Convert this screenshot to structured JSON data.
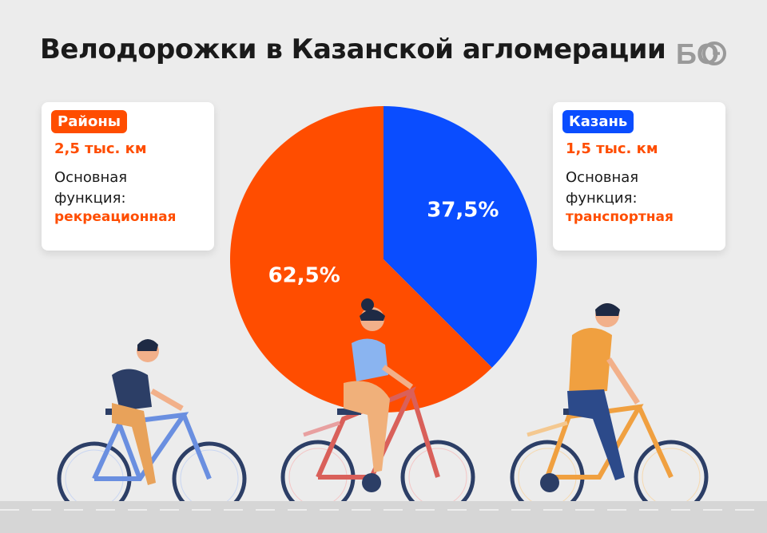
{
  "title": "Велодорожки в Казанской агломерации",
  "logo_text": "БО",
  "colors": {
    "districts": "#ff4d00",
    "kazan": "#0a4dff",
    "background": "#ececec"
  },
  "cards": {
    "left": {
      "badge": "Районы",
      "length": "2,5 тыс. км",
      "desc_line1": "Основная",
      "desc_line2": "функция:",
      "function": "рекреационная"
    },
    "right": {
      "badge": "Казань",
      "length": "1,5 тыс. км",
      "desc_line1": "Основная",
      "desc_line2": "функция:",
      "function": "транспортная"
    }
  },
  "chart_data": {
    "type": "pie",
    "title": "Велодорожки в Казанской агломерации",
    "slices": [
      {
        "label": "Казань",
        "value": 37.5,
        "display": "37,5%",
        "color": "#0a4dff"
      },
      {
        "label": "Районы",
        "value": 62.5,
        "display": "62,5%",
        "color": "#ff4d00"
      }
    ],
    "start_angle": "12 o'clock",
    "direction": "clockwise"
  }
}
